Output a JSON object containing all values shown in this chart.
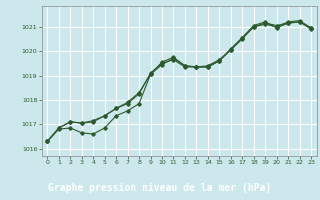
{
  "title": "Graphe pression niveau de la mer (hPa)",
  "bg_color": "#cce8ec",
  "plot_bg_color": "#cce8ec",
  "grid_color": "#ffffff",
  "line_color": "#2d5a2d",
  "marker_color": "#2d5a2d",
  "bottom_bar_color": "#3a6b3a",
  "bottom_text_color": "#ffffff",
  "xlim": [
    -0.5,
    23.5
  ],
  "ylim": [
    1015.7,
    1021.85
  ],
  "yticks": [
    1016,
    1017,
    1018,
    1019,
    1020,
    1021
  ],
  "xticks": [
    0,
    1,
    2,
    3,
    4,
    5,
    6,
    7,
    8,
    9,
    10,
    11,
    12,
    13,
    14,
    15,
    16,
    17,
    18,
    19,
    20,
    21,
    22,
    23
  ],
  "series": {
    "line1": [
      1016.3,
      1016.8,
      1016.85,
      1016.65,
      1016.6,
      1016.85,
      1017.35,
      1017.55,
      1017.85,
      1019.05,
      1019.55,
      1019.75,
      1019.4,
      1019.35,
      1019.4,
      1019.65,
      1020.05,
      1020.55,
      1021.05,
      1021.2,
      1020.95,
      1021.15,
      1021.2,
      1020.9
    ],
    "line2": [
      1016.3,
      1016.85,
      1017.1,
      1017.05,
      1017.1,
      1017.35,
      1017.65,
      1017.85,
      1018.25,
      1019.1,
      1019.5,
      1019.65,
      1019.35,
      1019.35,
      1019.35,
      1019.6,
      1020.1,
      1020.55,
      1021.0,
      1021.1,
      1021.0,
      1021.2,
      1021.25,
      1020.95
    ],
    "line3": [
      1016.3,
      1016.85,
      1017.1,
      1017.05,
      1017.15,
      1017.35,
      1017.65,
      1017.9,
      1018.3,
      1019.05,
      1019.45,
      1019.7,
      1019.4,
      1019.35,
      1019.35,
      1019.6,
      1020.05,
      1020.5,
      1021.0,
      1021.15,
      1021.05,
      1021.15,
      1021.2,
      1020.95
    ]
  }
}
